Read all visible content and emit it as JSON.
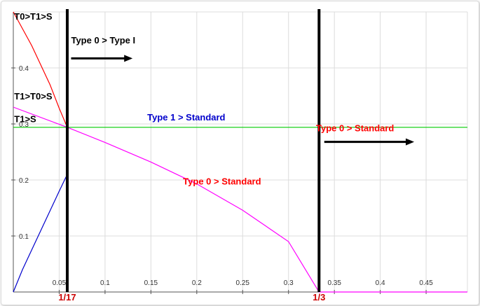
{
  "chart_data": {
    "type": "line",
    "title": "",
    "xlabel": "",
    "ylabel": "",
    "xlim": [
      0,
      0.495
    ],
    "ylim": [
      0,
      0.5
    ],
    "grid": true,
    "x_ticks": [
      "0.05",
      "0.1",
      "0.15",
      "0.2",
      "0.25",
      "0.3",
      "0.35",
      "0.4",
      "0.45"
    ],
    "y_ticks": [
      "0.1",
      "0.2",
      "0.3",
      "0.4"
    ],
    "series": [
      {
        "color": "#ff0000",
        "x": [
          0,
          0.01,
          0.02,
          0.03,
          0.04,
          0.05,
          0.0588
        ],
        "y": [
          0.5,
          0.47,
          0.44,
          0.405,
          0.37,
          0.328,
          0.294
        ]
      },
      {
        "color": "#0000cc",
        "x": [
          0,
          0.01,
          0.02,
          0.03,
          0.04,
          0.05,
          0.0588
        ],
        "y": [
          0,
          0.04,
          0.075,
          0.11,
          0.145,
          0.18,
          0.21
        ]
      },
      {
        "color": "#ff00ff",
        "x": [
          0,
          0.0588,
          0.1,
          0.15,
          0.2,
          0.25,
          0.3,
          0.3333,
          0.495
        ],
        "y": [
          0.33,
          0.294,
          0.267,
          0.232,
          0.193,
          0.146,
          0.09,
          0,
          0
        ]
      },
      {
        "color": "#00cc00",
        "x": [
          0,
          0.495
        ],
        "y": [
          0.294,
          0.294
        ]
      }
    ],
    "vertical_lines": [
      {
        "x": 0.0588,
        "label": "1/17",
        "color": "#000000"
      },
      {
        "x": 0.3333,
        "label": "1/3",
        "color": "#000000"
      }
    ],
    "annotations": [
      {
        "text": "T0>T1>S",
        "x": 0.001,
        "y": 0.486,
        "color": "#000000"
      },
      {
        "text": "T1>T0>S",
        "x": 0.001,
        "y": 0.344,
        "color": "#000000"
      },
      {
        "text": "T1>S",
        "x": 0.001,
        "y": 0.303,
        "color": "#000000"
      },
      {
        "text": "Type 0 > Type I",
        "x": 0.063,
        "y": 0.444,
        "color": "#000000"
      },
      {
        "text": "Type 1 > Standard",
        "x": 0.146,
        "y": 0.306,
        "color": "#0000cc"
      },
      {
        "text": "Type 0 > Standard",
        "x": 0.33,
        "y": 0.287,
        "color": "#ff0000"
      },
      {
        "text": "Type 0 > Standard",
        "x": 0.185,
        "y": 0.192,
        "color": "#ff0000"
      }
    ],
    "arrows": [
      {
        "x1": 0.063,
        "x2": 0.13,
        "y": 0.417,
        "color": "#000000"
      },
      {
        "x1": 0.339,
        "x2": 0.437,
        "y": 0.268,
        "color": "#000000"
      }
    ]
  }
}
